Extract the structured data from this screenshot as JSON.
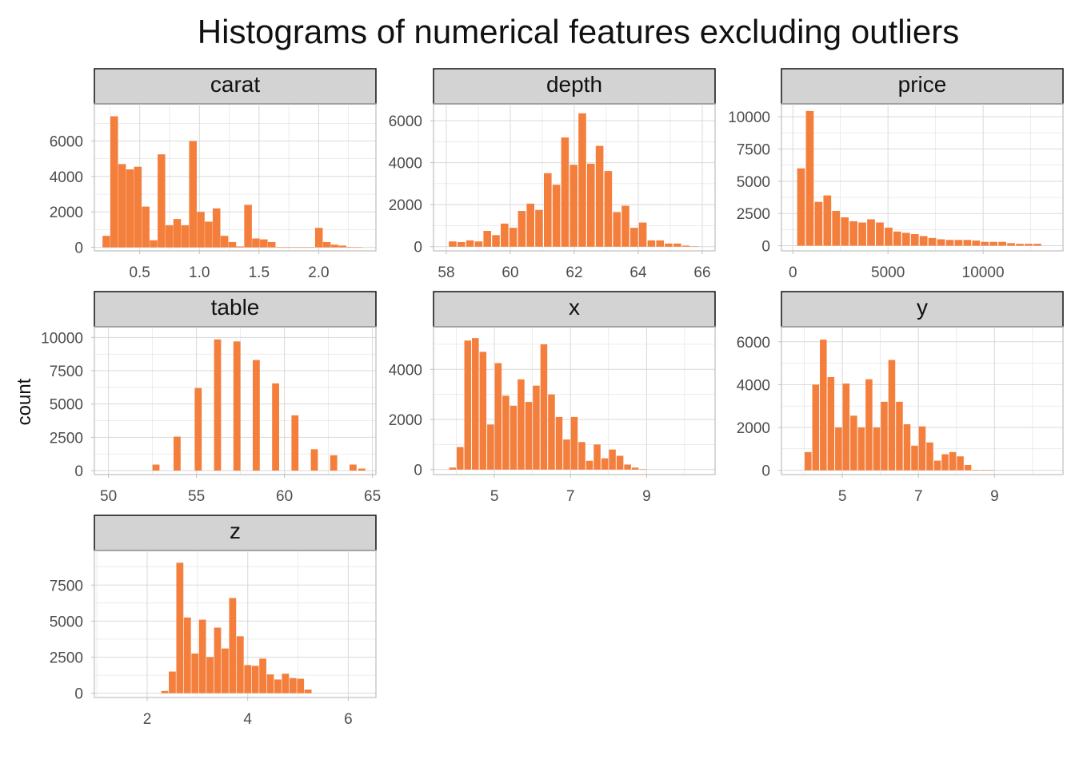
{
  "figure": {
    "title": "Histograms of numerical features excluding outliers",
    "ylabel": "count",
    "bar_color": "#F47F3D",
    "grid_color": "#D9D9D9",
    "strip_color": "#D3D3D3"
  },
  "chart_data": [
    {
      "type": "bar",
      "name": "carat",
      "xlim": [
        0.12,
        2.48
      ],
      "ylim": [
        -200,
        8100
      ],
      "xticks": [
        0.5,
        1.0,
        1.5,
        2.0
      ],
      "xtick_labels": [
        "0.5",
        "1.0",
        "1.5",
        "2.0"
      ],
      "yticks": [
        0,
        2000,
        4000,
        6000
      ],
      "ytick_labels": [
        "0",
        "2000",
        "4000",
        "6000"
      ],
      "bin_width": 0.064,
      "x": [
        0.22,
        0.286,
        0.352,
        0.418,
        0.484,
        0.55,
        0.616,
        0.682,
        0.748,
        0.814,
        0.88,
        0.946,
        1.012,
        1.078,
        1.144,
        1.21,
        1.276,
        1.342,
        1.408,
        1.474,
        1.54,
        1.606,
        1.672,
        1.738,
        1.804,
        1.87,
        1.936,
        2.002,
        2.068,
        2.134,
        2.2,
        2.266,
        2.332
      ],
      "values": [
        650,
        7400,
        4700,
        4400,
        4550,
        2300,
        400,
        5250,
        1250,
        1600,
        1250,
        6000,
        2000,
        1450,
        2200,
        650,
        300,
        50,
        2400,
        500,
        450,
        300,
        0,
        0,
        0,
        0,
        0,
        1100,
        300,
        150,
        100,
        20,
        0
      ]
    },
    {
      "type": "bar",
      "name": "depth",
      "xlim": [
        57.6,
        66.4
      ],
      "ylim": [
        -200,
        6800
      ],
      "xticks": [
        58,
        60,
        62,
        64,
        66
      ],
      "xtick_labels": [
        "58",
        "60",
        "62",
        "64",
        "66"
      ],
      "yticks": [
        0,
        2000,
        4000,
        6000
      ],
      "ytick_labels": [
        "0",
        "2000",
        "4000",
        "6000"
      ],
      "bin_width": 0.24,
      "x": [
        58.2,
        58.47,
        58.74,
        59.01,
        59.28,
        59.55,
        59.82,
        60.09,
        60.36,
        60.63,
        60.9,
        61.17,
        61.44,
        61.71,
        61.98,
        62.25,
        62.52,
        62.79,
        63.06,
        63.33,
        63.6,
        63.87,
        64.14,
        64.41,
        64.68,
        64.95,
        65.22,
        65.49,
        65.76
      ],
      "values": [
        250,
        220,
        300,
        250,
        750,
        550,
        1100,
        900,
        1700,
        2050,
        1750,
        3500,
        2950,
        5200,
        3900,
        6350,
        3950,
        4800,
        3600,
        1650,
        1950,
        900,
        1150,
        300,
        300,
        150,
        150,
        50,
        10
      ]
    },
    {
      "type": "bar",
      "name": "price",
      "xlim": [
        -600,
        14200
      ],
      "ylim": [
        -400,
        11000
      ],
      "xticks": [
        0,
        5000,
        10000
      ],
      "xtick_labels": [
        "0",
        "5000",
        "10000"
      ],
      "yticks": [
        0,
        2500,
        5000,
        7500,
        10000
      ],
      "ytick_labels": [
        "0",
        "2500",
        "5000",
        "7500",
        "10000"
      ],
      "bin_width": 410,
      "x": [
        430,
        890,
        1350,
        1810,
        2270,
        2730,
        3190,
        3650,
        4110,
        4570,
        5030,
        5490,
        5950,
        6410,
        6870,
        7330,
        7790,
        8250,
        8710,
        9170,
        9630,
        10090,
        10550,
        11010,
        11470,
        11930,
        12390,
        12850
      ],
      "values": [
        6000,
        10450,
        3400,
        3900,
        2700,
        2200,
        1900,
        1800,
        2050,
        1800,
        1400,
        1100,
        1000,
        900,
        750,
        600,
        500,
        450,
        450,
        450,
        400,
        300,
        300,
        300,
        200,
        150,
        150,
        150
      ]
    },
    {
      "type": "bar",
      "name": "table",
      "xlim": [
        49.2,
        65.2
      ],
      "ylim": [
        -300,
        10800
      ],
      "xticks": [
        50,
        55,
        60,
        65
      ],
      "xtick_labels": [
        "50",
        "55",
        "60",
        "65"
      ],
      "yticks": [
        0,
        2500,
        5000,
        7500,
        10000
      ],
      "ytick_labels": [
        "0",
        "2500",
        "5000",
        "7500",
        "10000"
      ],
      "bin_width": 0.4,
      "x": [
        52.7,
        53.9,
        55.1,
        56.2,
        57.3,
        58.4,
        59.5,
        60.6,
        61.7,
        62.8,
        63.9,
        64.4
      ],
      "values": [
        450,
        2550,
        6200,
        9850,
        9700,
        8300,
        6550,
        4150,
        1600,
        1150,
        450,
        150
      ]
    },
    {
      "type": "bar",
      "name": "x",
      "xlim": [
        3.4,
        10.8
      ],
      "ylim": [
        -200,
        5700
      ],
      "xticks": [
        5,
        7,
        9
      ],
      "xtick_labels": [
        "5",
        "7",
        "9"
      ],
      "yticks": [
        0,
        2000,
        4000
      ],
      "ytick_labels": [
        "0",
        "2000",
        "4000"
      ],
      "bin_width": 0.18,
      "x": [
        3.9,
        4.1,
        4.3,
        4.5,
        4.7,
        4.9,
        5.1,
        5.3,
        5.5,
        5.7,
        5.9,
        6.1,
        6.3,
        6.5,
        6.7,
        6.9,
        7.1,
        7.3,
        7.5,
        7.7,
        7.9,
        8.1,
        8.3,
        8.5,
        8.7,
        8.9
      ],
      "values": [
        80,
        900,
        5150,
        5250,
        4700,
        1800,
        4250,
        2950,
        2550,
        3600,
        2700,
        3350,
        5000,
        3000,
        2100,
        1200,
        2100,
        1100,
        350,
        1000,
        450,
        800,
        550,
        200,
        80,
        10
      ]
    },
    {
      "type": "bar",
      "name": "y",
      "xlim": [
        3.4,
        10.8
      ],
      "ylim": [
        -200,
        6700
      ],
      "xticks": [
        5,
        7,
        9
      ],
      "xtick_labels": [
        "5",
        "7",
        "9"
      ],
      "yticks": [
        0,
        2000,
        4000,
        6000
      ],
      "ytick_labels": [
        "0",
        "2000",
        "4000",
        "6000"
      ],
      "bin_width": 0.18,
      "x": [
        4.1,
        4.3,
        4.5,
        4.7,
        4.9,
        5.1,
        5.3,
        5.5,
        5.7,
        5.9,
        6.1,
        6.3,
        6.5,
        6.7,
        6.9,
        7.1,
        7.3,
        7.5,
        7.7,
        7.9,
        8.1,
        8.3,
        8.5,
        8.7,
        8.9
      ],
      "values": [
        850,
        4000,
        6100,
        4350,
        2000,
        4050,
        2550,
        2000,
        4250,
        2000,
        3200,
        5150,
        3200,
        2150,
        1150,
        2050,
        1300,
        450,
        750,
        850,
        650,
        250,
        20,
        20,
        20
      ]
    },
    {
      "type": "bar",
      "name": "z",
      "xlim": [
        0.95,
        6.55
      ],
      "ylim": [
        -300,
        9900
      ],
      "xticks": [
        2,
        4,
        6
      ],
      "xtick_labels": [
        "2",
        "4",
        "6"
      ],
      "yticks": [
        0,
        2500,
        5000,
        7500
      ],
      "ytick_labels": [
        "0",
        "2500",
        "5000",
        "7500"
      ],
      "bin_width": 0.14,
      "x": [
        2.35,
        2.5,
        2.65,
        2.8,
        2.95,
        3.1,
        3.25,
        3.4,
        3.55,
        3.7,
        3.85,
        4.0,
        4.15,
        4.3,
        4.45,
        4.6,
        4.75,
        4.9,
        5.05,
        5.2
      ],
      "values": [
        150,
        1500,
        9050,
        5250,
        2750,
        5100,
        2500,
        4550,
        3100,
        6600,
        3950,
        1950,
        1900,
        2400,
        1300,
        950,
        1350,
        1050,
        1000,
        250
      ]
    }
  ]
}
